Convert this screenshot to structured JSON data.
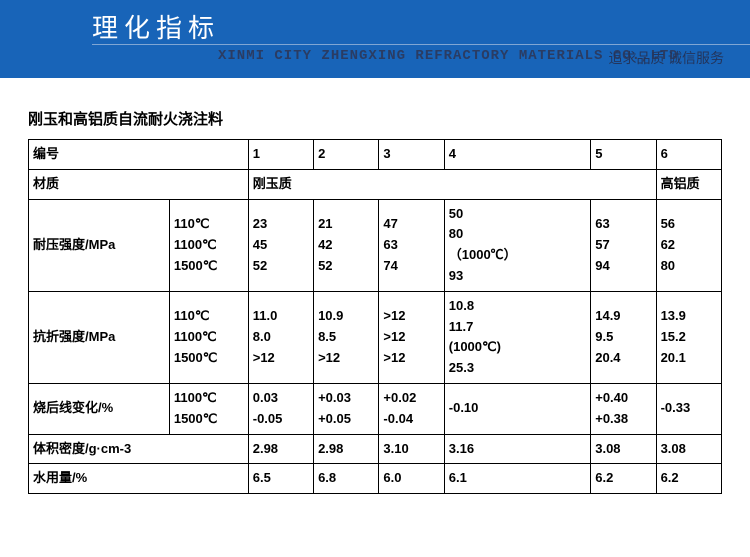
{
  "banner": {
    "title": "理化指标",
    "company": "XINMI CITY ZHENGXING REFRACTORY MATERIALS CO.,LTD",
    "slogan": "追求品质  诚信服务",
    "bg_color": "#1864b8",
    "title_color": "#ffffff",
    "sub_color": "#2a3c63"
  },
  "subtitle": "刚玉和高铝质自流耐火浇注料",
  "table": {
    "headers": {
      "serial": "编号",
      "cols": [
        "1",
        "2",
        "3",
        "4",
        "5",
        "6"
      ],
      "material_label": "材质",
      "material_1": "刚玉质",
      "material_2": "高铝质"
    },
    "rows": [
      {
        "label": "耐压强度/MPa",
        "temps": "110℃\n1100℃\n1500℃",
        "c": [
          "23\n45\n52",
          "21\n42\n52",
          "47\n63\n74",
          "50\n80\n（1000℃）\n93",
          "63\n57\n94",
          "56\n62\n80"
        ]
      },
      {
        "label": "抗折强度/MPa",
        "temps": "110℃\n1100℃\n1500℃",
        "c": [
          "11.0\n8.0\n>12",
          "10.9\n8.5\n>12",
          ">12\n>12\n>12",
          "10.8\n11.7\n(1000℃)\n25.3",
          "14.9\n9.5\n20.4",
          "13.9\n15.2\n20.1"
        ]
      },
      {
        "label": "烧后线变化/%",
        "temps": "1100℃\n1500℃",
        "c": [
          "0.03\n-0.05",
          "+0.03\n+0.05",
          "+0.02\n-0.04",
          "-0.10",
          "+0.40\n+0.38",
          "-0.33"
        ]
      },
      {
        "label": "体积密度/g·cm-3",
        "temps": "",
        "c": [
          "2.98",
          "2.98",
          "3.10",
          "3.16",
          "3.08",
          "3.08"
        ]
      },
      {
        "label": "水用量/%",
        "temps": "",
        "c": [
          "6.5",
          "6.8",
          "6.0",
          "6.1",
          "6.2",
          "6.2"
        ]
      }
    ]
  }
}
